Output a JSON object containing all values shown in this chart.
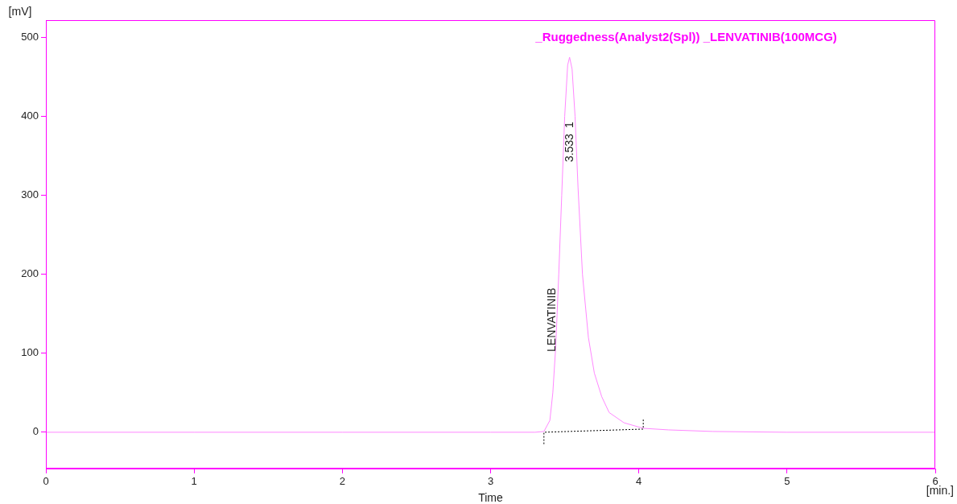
{
  "chart_data": {
    "type": "line",
    "title": "_Ruggedness(Analyst2(Spl)) _LENVATINIB(100MCG)",
    "xlabel": "Time",
    "ylabel": "[mV]",
    "xlim": [
      0,
      6
    ],
    "xticks": [
      0,
      1,
      2,
      3,
      4,
      5,
      6
    ],
    "ylim": [
      -46,
      522
    ],
    "yticks": [
      0,
      100,
      200,
      300,
      400,
      500
    ],
    "grid": false,
    "legend": false,
    "marker": "none",
    "series": [
      {
        "color": "#ff88ff",
        "line_style": "solid",
        "x": [
          0,
          1,
          2,
          3,
          3.3,
          3.36,
          3.4,
          3.42,
          3.44,
          3.46,
          3.48,
          3.5,
          3.52,
          3.533,
          3.55,
          3.57,
          3.59,
          3.62,
          3.66,
          3.7,
          3.75,
          3.8,
          3.9,
          4.03,
          4.2,
          4.5,
          5,
          6
        ],
        "values": [
          0,
          0,
          0,
          0,
          0,
          1,
          15,
          50,
          110,
          200,
          300,
          400,
          465,
          475,
          460,
          400,
          310,
          200,
          120,
          75,
          45,
          25,
          12,
          5,
          3,
          1,
          0,
          0
        ]
      },
      {
        "color": "#000000",
        "line_style": "dotted",
        "x": [
          3.36,
          3.36,
          4.03,
          4.03
        ],
        "values": [
          -15,
          0,
          4,
          18
        ]
      }
    ],
    "annotations": [
      "LENVATINIB",
      "3.533",
      "1",
      "[min.]"
    ]
  }
}
